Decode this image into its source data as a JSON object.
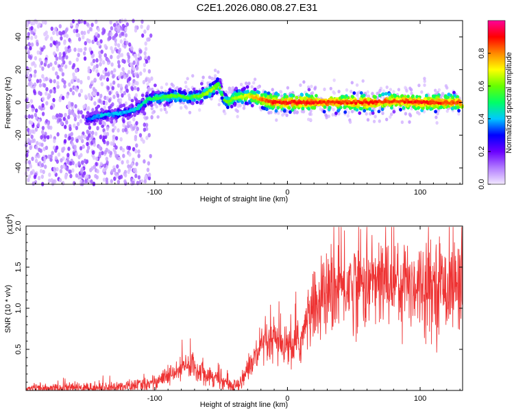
{
  "chart_data": [
    {
      "type": "heatmap",
      "title": "C2E1.2026.080.08.27.E31",
      "xlabel": "Height of straight line (km)",
      "ylabel": "Frequency (Hz)",
      "xlim": [
        -197,
        132
      ],
      "ylim": [
        -50,
        50
      ],
      "xticks": [
        -100,
        0,
        100
      ],
      "yticks": [
        -40,
        -20,
        0,
        20,
        40
      ],
      "colorbar": {
        "label": "Normalized spectral amplitude",
        "range": [
          0,
          1
        ],
        "ticks": [
          "0.0",
          "0.2",
          "0.4",
          "0.6",
          "0.8"
        ],
        "colors": [
          "#f2e8ff",
          "#b27cff",
          "#6a00ff",
          "#0000ff",
          "#00c8ff",
          "#00ff66",
          "#66ff00",
          "#ffff00",
          "#ff8800",
          "#ff0000",
          "#ff0099"
        ]
      },
      "ridge_trace": {
        "x": [
          -150,
          -140,
          -130,
          -120,
          -112,
          -105,
          -95,
          -85,
          -75,
          -65,
          -58,
          -52,
          -48,
          -45,
          -40,
          -30,
          -20,
          -10,
          0,
          20,
          40,
          60,
          80,
          100,
          120,
          130
        ],
        "freq": [
          -10,
          -8,
          -7,
          -6,
          -3,
          2,
          3,
          4,
          3,
          4,
          7,
          11,
          2,
          0,
          3,
          4,
          2,
          0,
          0,
          0,
          0,
          0,
          1,
          0,
          0,
          0
        ],
        "amplitude": [
          0.35,
          0.4,
          0.4,
          0.4,
          0.45,
          0.5,
          0.55,
          0.6,
          0.55,
          0.6,
          0.65,
          0.6,
          0.55,
          0.6,
          0.65,
          0.7,
          0.8,
          0.9,
          0.9,
          0.9,
          0.85,
          0.9,
          0.85,
          0.9,
          0.85,
          0.85
        ]
      }
    },
    {
      "type": "line",
      "xlabel": "Height of straight line (km)",
      "ylabel": "SNR (10 * v/v)",
      "scale_label": "(x10⁴)",
      "scale_base": "(x10",
      "scale_exp": "4",
      "color": "#ee3333",
      "xlim": [
        -197,
        132
      ],
      "ylim": [
        0,
        2.0
      ],
      "xticks": [
        -100,
        0,
        100
      ],
      "yticks": [
        "0.5",
        "1.0",
        "1.5",
        "2.0"
      ],
      "series": [
        {
          "name": "SNR",
          "x": [
            -197,
            -180,
            -160,
            -140,
            -120,
            -105,
            -95,
            -85,
            -78,
            -72,
            -68,
            -60,
            -52,
            -45,
            -40,
            -35,
            -30,
            -25,
            -20,
            -15,
            -10,
            -5,
            0,
            5,
            10,
            15,
            20,
            25,
            30,
            35,
            40,
            50,
            60,
            70,
            80,
            90,
            100,
            110,
            120,
            132
          ],
          "y": [
            0.02,
            0.02,
            0.03,
            0.03,
            0.05,
            0.08,
            0.14,
            0.2,
            0.28,
            0.32,
            0.26,
            0.2,
            0.14,
            0.08,
            0.05,
            0.12,
            0.25,
            0.38,
            0.5,
            0.55,
            0.6,
            0.55,
            0.5,
            0.55,
            0.6,
            0.85,
            1.0,
            1.1,
            1.15,
            1.2,
            1.25,
            1.3,
            1.3,
            1.32,
            1.35,
            1.32,
            1.3,
            1.3,
            1.28,
            1.3
          ]
        }
      ]
    }
  ]
}
